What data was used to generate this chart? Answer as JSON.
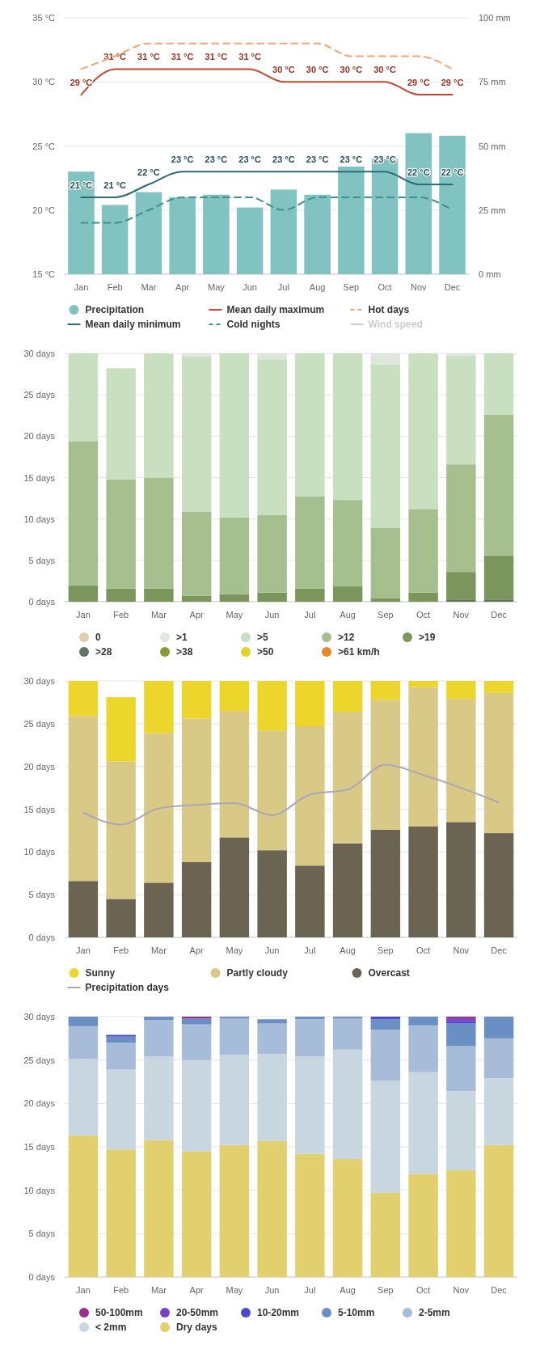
{
  "chart_data": [
    {
      "type": "bar",
      "categories": [
        "Jan",
        "Feb",
        "Mar",
        "Apr",
        "May",
        "Jun",
        "Jul",
        "Aug",
        "Sep",
        "Oct",
        "Nov",
        "Dec"
      ],
      "ylim": [
        15,
        35
      ],
      "yticks": [
        {
          "value": 15,
          "label": "15 °C"
        },
        {
          "value": 20,
          "label": "20 °C"
        },
        {
          "value": 25,
          "label": "25 °C"
        },
        {
          "value": 30,
          "label": "30 °C"
        },
        {
          "value": 35,
          "label": "35 °C"
        }
      ],
      "y2lim": [
        0,
        100
      ],
      "y2ticks": [
        {
          "value": 0,
          "label": "0 mm"
        },
        {
          "value": 25,
          "label": "25 mm"
        },
        {
          "value": 50,
          "label": "50 mm"
        },
        {
          "value": 75,
          "label": "75 mm"
        },
        {
          "value": 100,
          "label": "100 mm"
        }
      ],
      "grid": "y",
      "legend": "bottom",
      "series": [
        {
          "name": "Precipitation",
          "axis": "y2",
          "color": "#80c3c0",
          "values": [
            40,
            27,
            32,
            30,
            31,
            26,
            33,
            31,
            42,
            45,
            55,
            54
          ]
        },
        {
          "name": "Mean daily maximum",
          "type": "line",
          "color": "#c8452b",
          "values": [
            29,
            31,
            31,
            31,
            31,
            31,
            30,
            30,
            30,
            30,
            29,
            29
          ],
          "value_labels": [
            "29 °C",
            "31 °C",
            "31 °C",
            "31 °C",
            "31 °C",
            "31 °C",
            "30 °C",
            "30 °C",
            "30 °C",
            "30 °C",
            "29 °C",
            "29 °C"
          ]
        },
        {
          "name": "Hot days",
          "type": "line",
          "line_style": "dashed",
          "color": "#f4a46e",
          "values": [
            31,
            32,
            33,
            33,
            33,
            33,
            33,
            33,
            32,
            32,
            32,
            31
          ]
        },
        {
          "name": "Mean daily minimum",
          "type": "line",
          "color": "#2e6b78",
          "values": [
            21,
            21,
            22,
            23,
            23,
            23,
            23,
            23,
            23,
            23,
            22,
            22
          ],
          "value_labels": [
            "21 °C",
            "21 °C",
            "22 °C",
            "23 °C",
            "23 °C",
            "23 °C",
            "23 °C",
            "23 °C",
            "23 °C",
            "23 °C",
            "22 °C",
            "22 °C"
          ]
        },
        {
          "name": "Cold nights",
          "type": "line",
          "line_style": "dashed",
          "color": "#3d8f96",
          "values": [
            19,
            19,
            20,
            21,
            21,
            21,
            20,
            21,
            21,
            21,
            21,
            20
          ]
        },
        {
          "name": "Wind speed",
          "type": "line",
          "color": "#cccccc",
          "values": [
            null,
            null,
            null,
            null,
            null,
            null,
            null,
            null,
            null,
            null,
            null,
            null
          ]
        }
      ]
    },
    {
      "type": "bar",
      "stacked": true,
      "categories": [
        "Jan",
        "Feb",
        "Mar",
        "Apr",
        "May",
        "Jun",
        "Jul",
        "Aug",
        "Sep",
        "Oct",
        "Nov",
        "Dec"
      ],
      "ylim": [
        0,
        30
      ],
      "yticks": [
        {
          "value": 0,
          "label": "0 days"
        },
        {
          "value": 5,
          "label": "5 days"
        },
        {
          "value": 10,
          "label": "10 days"
        },
        {
          "value": 15,
          "label": "15 days"
        },
        {
          "value": 20,
          "label": "20 days"
        },
        {
          "value": 25,
          "label": "25 days"
        },
        {
          "value": 30,
          "label": "30 days"
        }
      ],
      "grid": "y",
      "legend": "bottom",
      "series": [
        {
          "name": ">61 km/h",
          "color": "#e8872a",
          "values": [
            0,
            0,
            0,
            0,
            0,
            0,
            0,
            0,
            0,
            0,
            0,
            0
          ]
        },
        {
          "name": ">50",
          "color": "#e2d22a",
          "values": [
            0,
            0,
            0,
            0,
            0,
            0,
            0,
            0,
            0,
            0,
            0,
            0
          ]
        },
        {
          "name": ">38",
          "color": "#8c9a35",
          "values": [
            0,
            0,
            0,
            0,
            0,
            0,
            0,
            0,
            0,
            0,
            0,
            0
          ]
        },
        {
          "name": ">28",
          "color": "#5e7560",
          "values": [
            0,
            0,
            0,
            0,
            0,
            0,
            0,
            0,
            0,
            0,
            0.2,
            0.2
          ]
        },
        {
          "name": ">19",
          "color": "#7a965c",
          "values": [
            2.0,
            1.6,
            1.6,
            0.7,
            0.9,
            1.1,
            1.6,
            1.9,
            0.4,
            1.1,
            3.4,
            5.4
          ]
        },
        {
          "name": ">12",
          "color": "#a5bf8f",
          "values": [
            17.4,
            13.2,
            13.4,
            10.2,
            9.3,
            9.4,
            11.1,
            10.4,
            8.5,
            10.1,
            13.0,
            17.0
          ]
        },
        {
          "name": ">5",
          "color": "#c8dfc0",
          "values": [
            10.6,
            13.4,
            15.0,
            18.7,
            19.8,
            18.8,
            17.3,
            17.7,
            19.8,
            18.8,
            13.1,
            7.4
          ]
        },
        {
          "name": ">1",
          "color": "#dde7dc",
          "values": [
            0,
            0,
            0,
            0.4,
            0,
            0.7,
            0,
            0,
            1.3,
            0,
            0.3,
            0
          ]
        },
        {
          "name": "0",
          "color": "#e0cfaa",
          "values": [
            0,
            0,
            0,
            0,
            0,
            0,
            0,
            0,
            0,
            0,
            0,
            0
          ]
        }
      ]
    },
    {
      "type": "bar",
      "stacked": true,
      "categories": [
        "Jan",
        "Feb",
        "Mar",
        "Apr",
        "May",
        "Jun",
        "Jul",
        "Aug",
        "Sep",
        "Oct",
        "Nov",
        "Dec"
      ],
      "ylim": [
        0,
        30
      ],
      "yticks": [
        {
          "value": 0,
          "label": "0 days"
        },
        {
          "value": 5,
          "label": "5 days"
        },
        {
          "value": 10,
          "label": "10 days"
        },
        {
          "value": 15,
          "label": "15 days"
        },
        {
          "value": 20,
          "label": "20 days"
        },
        {
          "value": 25,
          "label": "25 days"
        },
        {
          "value": 30,
          "label": "30 days"
        }
      ],
      "grid": "y",
      "legend": "bottom",
      "series": [
        {
          "name": "Overcast",
          "color": "#6b6453",
          "values": [
            6.6,
            4.5,
            6.4,
            8.8,
            11.7,
            10.2,
            8.4,
            11.0,
            12.6,
            13.0,
            13.5,
            12.2
          ]
        },
        {
          "name": "Partly cloudy",
          "color": "#d9c987",
          "values": [
            19.3,
            16.1,
            17.5,
            16.8,
            14.8,
            14.0,
            16.3,
            15.4,
            15.2,
            16.3,
            14.4,
            16.4
          ]
        },
        {
          "name": "Sunny",
          "color": "#ecd62b",
          "values": [
            4.1,
            7.5,
            6.1,
            4.4,
            3.5,
            5.8,
            5.3,
            3.6,
            2.2,
            0.7,
            2.1,
            1.4
          ]
        },
        {
          "name": "Precipitation days",
          "type": "line",
          "color": "#a9a9b8",
          "values": [
            14.6,
            13.2,
            15.1,
            15.5,
            15.7,
            14.3,
            16.7,
            17.3,
            20.2,
            19.0,
            17.5,
            15.8
          ]
        }
      ]
    },
    {
      "type": "bar",
      "stacked": true,
      "categories": [
        "Jan",
        "Feb",
        "Mar",
        "Apr",
        "May",
        "Jun",
        "Jul",
        "Aug",
        "Sep",
        "Oct",
        "Nov",
        "Dec"
      ],
      "ylim": [
        0,
        30
      ],
      "yticks": [
        {
          "value": 0,
          "label": "0 days"
        },
        {
          "value": 5,
          "label": "5 days"
        },
        {
          "value": 10,
          "label": "10 days"
        },
        {
          "value": 15,
          "label": "15 days"
        },
        {
          "value": 20,
          "label": "20 days"
        },
        {
          "value": 25,
          "label": "25 days"
        },
        {
          "value": 30,
          "label": "30 days"
        }
      ],
      "grid": "y",
      "legend": "bottom",
      "series": [
        {
          "name": "Dry days",
          "color": "#e2d06e",
          "values": [
            16.3,
            14.7,
            15.8,
            14.5,
            15.2,
            15.7,
            14.2,
            13.6,
            9.7,
            11.9,
            12.3,
            15.2
          ]
        },
        {
          "name": "< 2mm",
          "color": "#c8d6df",
          "values": [
            8.8,
            9.2,
            9.6,
            10.5,
            10.4,
            10.0,
            11.2,
            12.6,
            12.9,
            11.7,
            9.1,
            7.7
          ]
        },
        {
          "name": "2-5mm",
          "color": "#a7bcd9",
          "values": [
            3.8,
            3.1,
            4.2,
            4.1,
            4.2,
            3.5,
            4.3,
            3.6,
            5.9,
            5.4,
            5.2,
            4.6
          ]
        },
        {
          "name": "5-10mm",
          "color": "#6a8fc4",
          "values": [
            1.1,
            0.7,
            0.4,
            0.7,
            0.2,
            0.5,
            0.3,
            0.2,
            1.2,
            1.0,
            2.6,
            2.5
          ]
        },
        {
          "name": "10-20mm",
          "color": "#4b4bd0",
          "values": [
            0,
            0.2,
            0,
            0,
            0,
            0,
            0,
            0,
            0.3,
            0,
            0.3,
            0
          ]
        },
        {
          "name": "20-50mm",
          "color": "#7b3fc4",
          "values": [
            0,
            0,
            0,
            0,
            0,
            0,
            0,
            0,
            0,
            0,
            0.3,
            0
          ]
        },
        {
          "name": "50-100mm",
          "color": "#9b2f8f",
          "values": [
            0,
            0,
            0,
            0.2,
            0,
            0,
            0,
            0,
            0,
            0,
            0.2,
            0
          ]
        }
      ]
    }
  ]
}
